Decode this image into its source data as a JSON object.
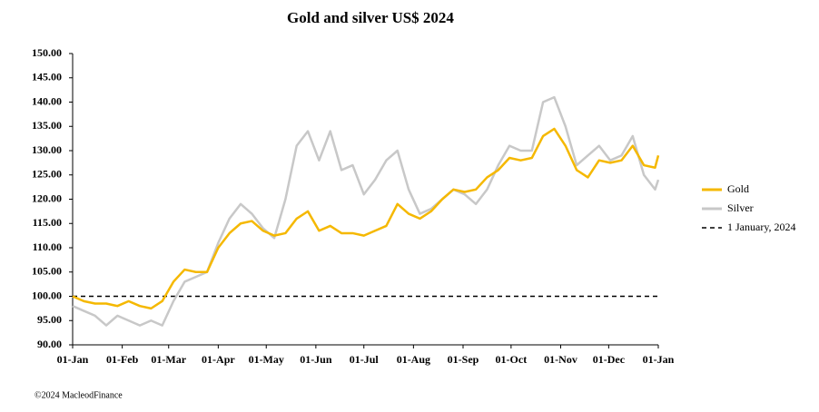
{
  "chart_data": {
    "type": "line",
    "title": "Gold and silver  US$ 2024",
    "x": [
      0,
      7,
      14,
      21,
      28,
      35,
      42,
      49,
      56,
      63,
      70,
      77,
      84,
      91,
      98,
      105,
      112,
      119,
      126,
      133,
      140,
      147,
      154,
      161,
      168,
      175,
      182,
      189,
      196,
      203,
      210,
      217,
      224,
      231,
      238,
      245,
      252,
      259,
      266,
      273,
      280,
      287,
      294,
      301,
      308,
      315,
      322,
      329,
      336,
      343,
      350,
      357,
      364,
      366
    ],
    "series": [
      {
        "name": "Gold",
        "color": "#f5b800",
        "values": [
          100,
          99,
          98.5,
          98.5,
          98,
          99,
          98,
          97.5,
          99,
          103,
          105.5,
          105,
          105,
          110,
          113,
          115,
          115.5,
          113.5,
          112.5,
          113,
          116,
          117.5,
          113.5,
          114.5,
          113,
          113,
          112.5,
          113.5,
          114.5,
          119,
          117,
          116,
          117.5,
          120,
          122,
          121.5,
          122,
          124.5,
          126,
          128.5,
          128,
          128.5,
          133,
          134.5,
          131,
          126,
          124.5,
          128,
          127.5,
          128,
          131,
          127,
          126.5,
          129
        ]
      },
      {
        "name": "Silver",
        "color": "#c8c8c8",
        "values": [
          98,
          97,
          96,
          94,
          96,
          95,
          94,
          95,
          94,
          99,
          103,
          104,
          105,
          111,
          116,
          119,
          117,
          114,
          112,
          120,
          131,
          134,
          128,
          134,
          126,
          127,
          121,
          124,
          128,
          130,
          122,
          117,
          118,
          120,
          122,
          121,
          119,
          122,
          127,
          131,
          130,
          130,
          140,
          141,
          135,
          127,
          129,
          131,
          128,
          129,
          133,
          125,
          122,
          124
        ]
      }
    ],
    "reference_line": {
      "name": "1 January, 2024",
      "value": 100,
      "color": "#000000"
    },
    "xlim": [
      0,
      366
    ],
    "xticks": [
      {
        "value": 0,
        "label": "01-Jan"
      },
      {
        "value": 31,
        "label": "01-Feb"
      },
      {
        "value": 60,
        "label": "01-Mar"
      },
      {
        "value": 91,
        "label": "01-Apr"
      },
      {
        "value": 121,
        "label": "01-May"
      },
      {
        "value": 152,
        "label": "01-Jun"
      },
      {
        "value": 182,
        "label": "01-Jul"
      },
      {
        "value": 213,
        "label": "01-Aug"
      },
      {
        "value": 244,
        "label": "01-Sep"
      },
      {
        "value": 274,
        "label": "01-Oct"
      },
      {
        "value": 305,
        "label": "01-Nov"
      },
      {
        "value": 335,
        "label": "01-Dec"
      },
      {
        "value": 366,
        "label": "01-Jan"
      }
    ],
    "ylim": [
      90,
      150
    ],
    "yticks": [
      {
        "value": 90,
        "label": "90.00"
      },
      {
        "value": 95,
        "label": "95.00"
      },
      {
        "value": 100,
        "label": "100.00"
      },
      {
        "value": 105,
        "label": "105.00"
      },
      {
        "value": 110,
        "label": "110.00"
      },
      {
        "value": 115,
        "label": "115.00"
      },
      {
        "value": 120,
        "label": "120.00"
      },
      {
        "value": 125,
        "label": "125.00"
      },
      {
        "value": 130,
        "label": "130.00"
      },
      {
        "value": 135,
        "label": "135.00"
      },
      {
        "value": 140,
        "label": "140.00"
      },
      {
        "value": 145,
        "label": "145.00"
      },
      {
        "value": 150,
        "label": "150.00"
      }
    ],
    "grid": false,
    "legend": "right",
    "footer": "©2024 MacleodFinance"
  }
}
